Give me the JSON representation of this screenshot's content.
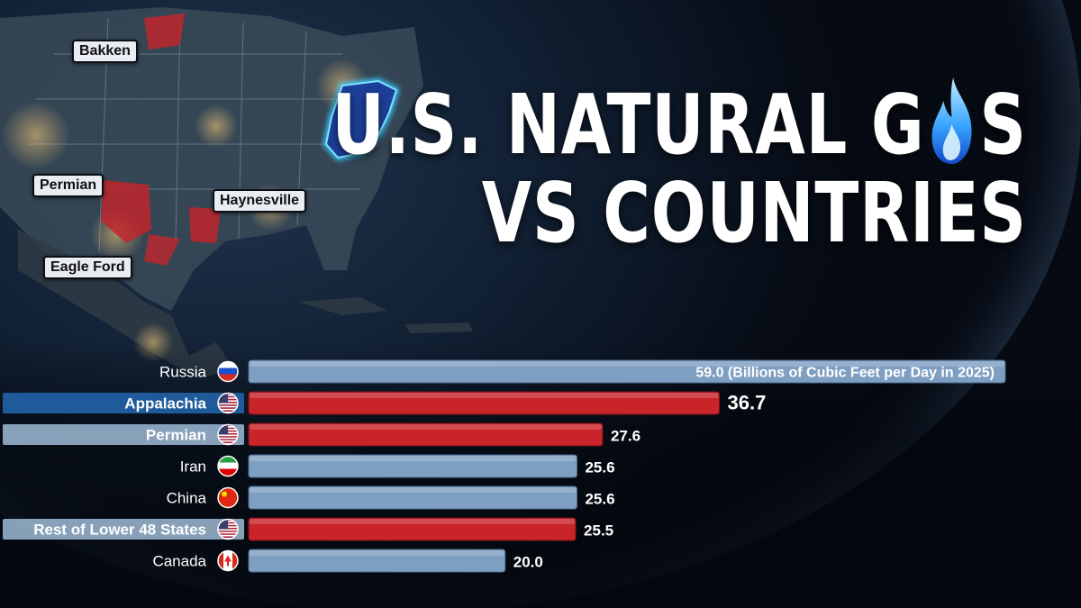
{
  "title": {
    "line1_before_icon": "U.S. NATURAL G",
    "line1_after_icon": "S",
    "line2": "VS COUNTRIES",
    "icon": "flame-icon"
  },
  "map_labels": {
    "bakken": "Bakken",
    "permian": "Permian",
    "haynesville": "Haynesville",
    "eagle_ford": "Eagle Ford"
  },
  "colors": {
    "country_bar": "#7f9fc2",
    "us_bar": "#c8242a",
    "highlight_label_bg": "#1f5b9a",
    "us_label_bg": "#9fbbd6"
  },
  "chart_data": {
    "type": "bar",
    "orientation": "horizontal",
    "unit_note": "(Billions of Cubic Feet per Day in 2025)",
    "categories": [
      "Russia",
      "Appalachia",
      "Permian",
      "Iran",
      "China",
      "Rest of Lower 48 States",
      "Canada"
    ],
    "values": [
      59.0,
      36.7,
      27.6,
      25.6,
      25.6,
      25.5,
      20.0
    ],
    "value_labels": [
      "59.0",
      "36.7",
      "27.6",
      "25.6",
      "25.6",
      "25.5",
      "20.0"
    ],
    "kind": [
      "country",
      "us",
      "us",
      "country",
      "country",
      "us",
      "country"
    ],
    "flags": [
      "russia-flag-icon",
      "us-flag-icon",
      "us-flag-icon",
      "iran-flag-icon",
      "china-flag-icon",
      "us-flag-icon",
      "canada-flag-icon"
    ],
    "xlim": [
      0,
      59.0
    ]
  }
}
